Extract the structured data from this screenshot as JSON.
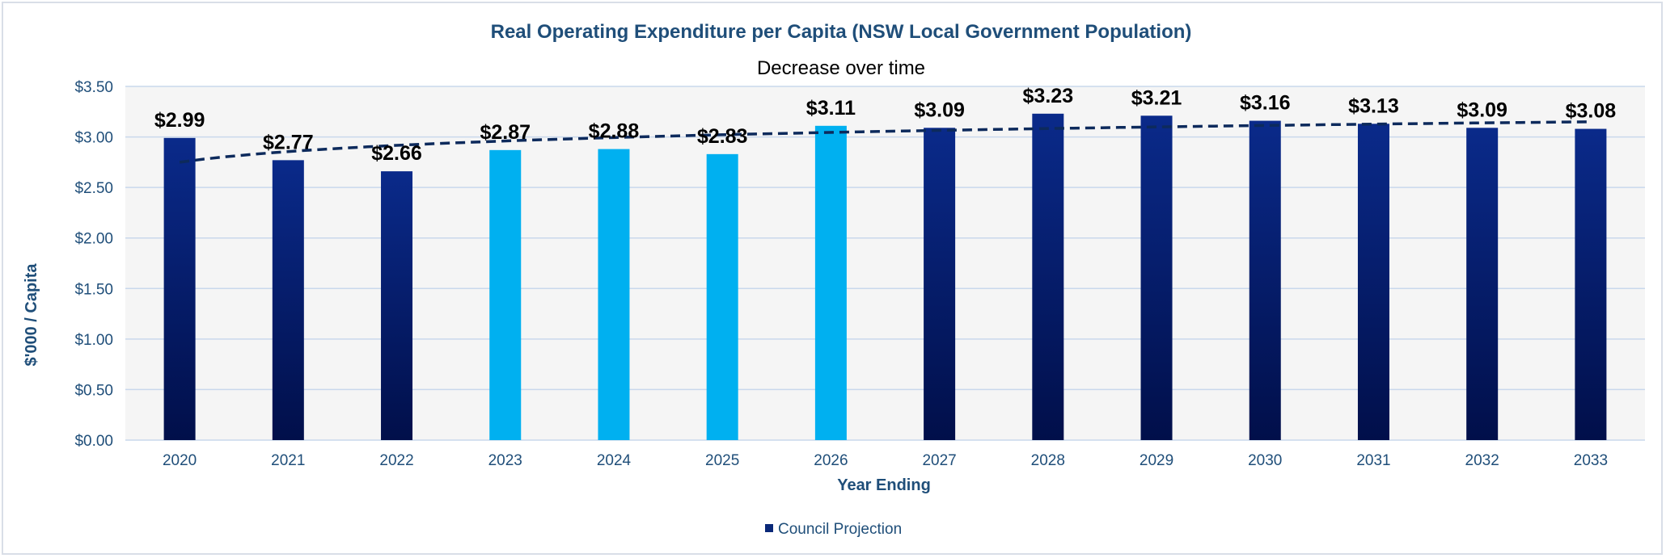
{
  "chart_data": {
    "type": "bar",
    "title": "Real Operating Expenditure per Capita (NSW Local Government Population)",
    "subtitle": "Decrease over time",
    "xlabel": "Year Ending",
    "ylabel": "$'000 / Capita",
    "ylim": [
      0,
      3.5
    ],
    "y_ticks": [
      0,
      0.5,
      1.0,
      1.5,
      2.0,
      2.5,
      3.0,
      3.5
    ],
    "y_tick_labels": [
      "$0.00",
      "$0.50",
      "$1.00",
      "$1.50",
      "$2.00",
      "$2.50",
      "$3.00",
      "$3.50"
    ],
    "categories": [
      "2020",
      "2021",
      "2022",
      "2023",
      "2024",
      "2025",
      "2026",
      "2027",
      "2028",
      "2029",
      "2030",
      "2031",
      "2032",
      "2033"
    ],
    "values": [
      2.99,
      2.77,
      2.66,
      2.87,
      2.88,
      2.83,
      3.11,
      3.09,
      3.23,
      3.21,
      3.16,
      3.13,
      3.09,
      3.08
    ],
    "data_labels": [
      "$2.99",
      "$2.77",
      "$2.66",
      "$2.87",
      "$2.88",
      "$2.83",
      "$3.11",
      "$3.09",
      "$3.23",
      "$3.21",
      "$3.16",
      "$3.13",
      "$3.09",
      "$3.08"
    ],
    "bar_colors": [
      "#001a6e",
      "#001a6e",
      "#001a6e",
      "#00b0f0",
      "#00b0f0",
      "#00b0f0",
      "#00b0f0",
      "#001a6e",
      "#001a6e",
      "#001a6e",
      "#001a6e",
      "#001a6e",
      "#001a6e",
      "#001a6e"
    ],
    "trendline": {
      "style": "dashed",
      "color": "#0d2a5c",
      "start_value": 2.75,
      "end_value": 3.15,
      "curve": "logarithmic"
    },
    "grid": true,
    "legend": {
      "position": "bottom",
      "entries": [
        {
          "label": "Council Projection",
          "color": "#0a2878"
        }
      ]
    }
  },
  "colors": {
    "plot_background": "#f5f5f5",
    "gridline": "#c9d8ec",
    "accent_title": "#1f4e79",
    "dark_bar": "#001a6e",
    "light_bar": "#00b0f0"
  }
}
